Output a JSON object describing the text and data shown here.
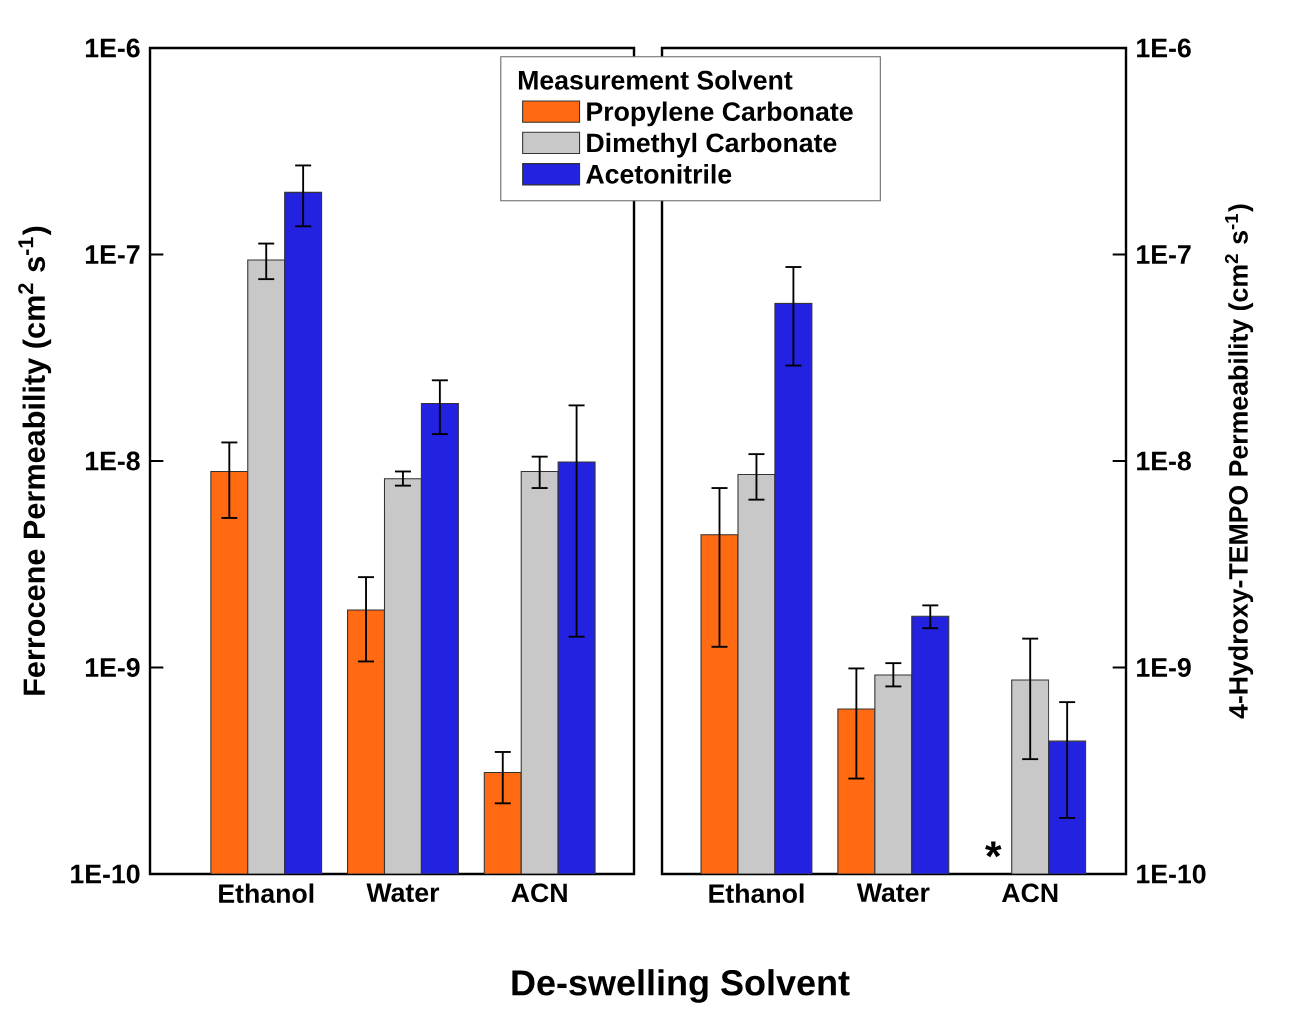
{
  "chart_data": [
    {
      "type": "bar",
      "ylabel": "Ferrocene Permeability (cm$^{2}$ s$^{-1}$)",
      "xlabel": "De-swelling Solvent",
      "legend_title": "Measurement Solvent",
      "legend": "top right",
      "log": true,
      "categories": [
        "Ethanol",
        "Water",
        "ACN"
      ],
      "ylim": [
        1e-10,
        1e-06
      ],
      "yticks": [
        {
          "value": 1e-10,
          "label": "1E-10"
        },
        {
          "value": 1e-09,
          "label": "1E-9"
        },
        {
          "value": 1e-08,
          "label": "1E-8"
        },
        {
          "value": 1e-07,
          "label": "1E-7"
        },
        {
          "value": 1e-06,
          "label": "1E-6"
        }
      ],
      "series": [
        {
          "name": "Propylene Carbonate",
          "color": "#ff6a13",
          "values": [
            8.9e-09,
            1.9e-09,
            3.1e-10
          ],
          "errors": [
            [
              5.3e-09,
              1.23e-08
            ],
            [
              1.07e-09,
              2.74e-09
            ],
            [
              2.2e-10,
              3.9e-10
            ]
          ]
        },
        {
          "name": "Dimethyl Carbonate",
          "color": "#c8c8c8",
          "values": [
            9.4e-08,
            8.2e-09,
            8.9e-09
          ],
          "errors": [
            [
              7.6e-08,
              1.13e-07
            ],
            [
              7.6e-09,
              8.9e-09
            ],
            [
              7.4e-09,
              1.05e-08
            ]
          ]
        },
        {
          "name": "Acetonitrile",
          "color": "#2222e0",
          "values": [
            2e-07,
            1.9e-08,
            9.9e-09
          ],
          "errors": [
            [
              1.37e-07,
              2.7e-07
            ],
            [
              1.35e-08,
              2.46e-08
            ],
            [
              1.41e-09,
              1.86e-08
            ]
          ]
        }
      ]
    },
    {
      "type": "bar",
      "ylabel": "4-Hydroxy-TEMPO Permeability (cm$^{2}$ s$^{-1}$)",
      "log": true,
      "categories": [
        "Ethanol",
        "Water",
        "ACN"
      ],
      "ylim": [
        1e-10,
        1e-06
      ],
      "yticks": [
        {
          "value": 1e-10,
          "label": "1E-10"
        },
        {
          "value": 1e-09,
          "label": "1E-9"
        },
        {
          "value": 1e-08,
          "label": "1E-8"
        },
        {
          "value": 1e-07,
          "label": "1E-7"
        },
        {
          "value": 1e-06,
          "label": "1E-6"
        }
      ],
      "annotations": [
        "*"
      ],
      "series": [
        {
          "color": "#ff6a13",
          "values": [
            4.4e-09,
            6.3e-10,
            null
          ],
          "errors": [
            [
              1.26e-09,
              7.4e-09
            ],
            [
              2.9e-10,
              9.9e-10
            ],
            null
          ]
        },
        {
          "color": "#c8c8c8",
          "values": [
            8.6e-09,
            9.2e-10,
            8.7e-10
          ],
          "errors": [
            [
              6.5e-09,
              1.08e-08
            ],
            [
              8.1e-10,
              1.05e-09
            ],
            [
              3.6e-10,
              1.38e-09
            ]
          ]
        },
        {
          "color": "#2222e0",
          "values": [
            5.8e-08,
            1.77e-09,
            4.4e-10
          ],
          "errors": [
            [
              2.9e-08,
              8.7e-08
            ],
            [
              1.55e-09,
              2e-09
            ],
            [
              1.87e-10,
              6.8e-10
            ]
          ]
        }
      ]
    }
  ]
}
